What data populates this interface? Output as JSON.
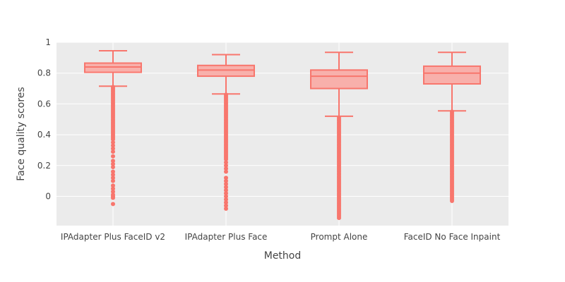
{
  "chart_data": {
    "type": "box",
    "xlabel": "Method",
    "ylabel": "Face quality scores",
    "ylim": [
      -0.19,
      1.0
    ],
    "yticks": [
      0,
      0.2,
      0.4,
      0.6,
      0.8,
      1
    ],
    "ytick_labels": [
      "0",
      "0.2",
      "0.4",
      "0.6",
      "0.8",
      "1"
    ],
    "grid": true,
    "legend": "none",
    "colors": {
      "plot_bg": "#ebebeb",
      "grid": "#ffffff",
      "box_line": "#f8766d",
      "box_fill": "#f8b0ab"
    },
    "categories": [
      "IPAdapter Plus FaceID v2",
      "IPAdapter Plus Face",
      "Prompt Alone",
      "FaceID No Face Inpaint"
    ],
    "boxes": [
      {
        "category": "IPAdapter Plus FaceID v2",
        "lower_whisker": 0.715,
        "q1": 0.805,
        "median": 0.84,
        "q3": 0.865,
        "upper_whisker": 0.945,
        "outliers": [
          0.71,
          0.7,
          0.69,
          0.68,
          0.67,
          0.66,
          0.65,
          0.64,
          0.63,
          0.62,
          0.61,
          0.6,
          0.59,
          0.58,
          0.57,
          0.56,
          0.55,
          0.54,
          0.53,
          0.52,
          0.51,
          0.5,
          0.49,
          0.48,
          0.47,
          0.46,
          0.45,
          0.44,
          0.43,
          0.42,
          0.41,
          0.4,
          0.39,
          0.38,
          0.37,
          0.35,
          0.33,
          0.31,
          0.29,
          0.26,
          0.23,
          0.21,
          0.19,
          0.16,
          0.14,
          0.12,
          0.1,
          0.07,
          0.05,
          0.03,
          0.01,
          0.0,
          -0.01,
          -0.05
        ]
      },
      {
        "category": "IPAdapter Plus Face",
        "lower_whisker": 0.665,
        "q1": 0.78,
        "median": 0.82,
        "q3": 0.85,
        "upper_whisker": 0.92,
        "outliers": [
          0.66,
          0.65,
          0.64,
          0.63,
          0.62,
          0.61,
          0.6,
          0.59,
          0.58,
          0.57,
          0.56,
          0.55,
          0.54,
          0.53,
          0.52,
          0.51,
          0.5,
          0.49,
          0.48,
          0.47,
          0.46,
          0.45,
          0.44,
          0.43,
          0.42,
          0.41,
          0.4,
          0.39,
          0.38,
          0.37,
          0.36,
          0.35,
          0.34,
          0.33,
          0.32,
          0.31,
          0.3,
          0.29,
          0.28,
          0.27,
          0.26,
          0.25,
          0.24,
          0.22,
          0.2,
          0.18,
          0.16,
          0.12,
          0.1,
          0.08,
          0.06,
          0.04,
          0.02,
          0.0,
          -0.02,
          -0.04,
          -0.06,
          -0.08
        ]
      },
      {
        "category": "Prompt Alone",
        "lower_whisker": 0.52,
        "q1": 0.7,
        "median": 0.78,
        "q3": 0.82,
        "upper_whisker": 0.935,
        "outliers": [
          0.51,
          0.5,
          0.49,
          0.48,
          0.47,
          0.46,
          0.45,
          0.44,
          0.43,
          0.42,
          0.41,
          0.4,
          0.39,
          0.38,
          0.37,
          0.36,
          0.35,
          0.34,
          0.33,
          0.32,
          0.31,
          0.3,
          0.29,
          0.28,
          0.27,
          0.26,
          0.25,
          0.24,
          0.23,
          0.22,
          0.21,
          0.2,
          0.19,
          0.18,
          0.17,
          0.16,
          0.15,
          0.14,
          0.13,
          0.12,
          0.11,
          0.1,
          0.09,
          0.08,
          0.07,
          0.06,
          0.05,
          0.04,
          0.03,
          0.02,
          0.01,
          0.0,
          -0.01,
          -0.02,
          -0.03,
          -0.04,
          -0.05,
          -0.06,
          -0.07,
          -0.08,
          -0.09,
          -0.1,
          -0.11,
          -0.12,
          -0.13,
          -0.14
        ]
      },
      {
        "category": "FaceID No Face Inpaint",
        "lower_whisker": 0.555,
        "q1": 0.73,
        "median": 0.8,
        "q3": 0.845,
        "upper_whisker": 0.935,
        "outliers": [
          0.55,
          0.54,
          0.53,
          0.52,
          0.51,
          0.5,
          0.49,
          0.48,
          0.47,
          0.46,
          0.45,
          0.44,
          0.43,
          0.42,
          0.41,
          0.4,
          0.39,
          0.38,
          0.37,
          0.36,
          0.35,
          0.34,
          0.33,
          0.32,
          0.31,
          0.3,
          0.29,
          0.28,
          0.27,
          0.26,
          0.25,
          0.24,
          0.23,
          0.22,
          0.21,
          0.2,
          0.19,
          0.18,
          0.17,
          0.16,
          0.15,
          0.14,
          0.13,
          0.12,
          0.11,
          0.1,
          0.09,
          0.08,
          0.07,
          0.06,
          0.05,
          0.04,
          0.03,
          0.02,
          0.01,
          0.0,
          -0.01,
          -0.02,
          -0.03
        ]
      }
    ]
  }
}
